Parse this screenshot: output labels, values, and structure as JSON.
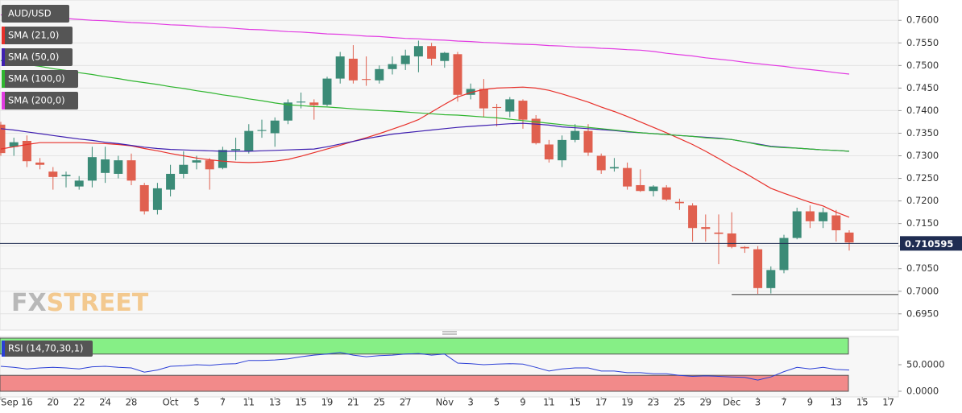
{
  "chart_data": {
    "type": "candlestick",
    "symbol": "AUD/USD",
    "categories": [
      "Sep",
      null,
      "16",
      null,
      "20",
      null,
      "22",
      null,
      "24",
      null,
      "28",
      null,
      null,
      "Oct",
      null,
      "5",
      null,
      "7",
      null,
      "11",
      null,
      "13",
      null,
      "15",
      null,
      "19",
      null,
      "21",
      null,
      "25",
      null,
      "27",
      null,
      null,
      "Nov",
      null,
      "3",
      null,
      "5",
      null,
      "9",
      null,
      "11",
      null,
      "15",
      null,
      "17",
      null,
      "19",
      null,
      "23",
      null,
      "25",
      null,
      "29",
      null,
      "Dec",
      null,
      "3",
      null,
      "7",
      null,
      "9",
      null,
      "13",
      null,
      "15",
      null,
      "17"
    ],
    "open": [
      0.7369,
      0.732,
      0.7333,
      0.7285,
      0.7265,
      0.7255,
      0.7232,
      0.7245,
      0.7262,
      0.726,
      0.729,
      0.7235,
      0.718,
      0.7225,
      0.726,
      0.7285,
      0.729,
      0.7273,
      0.7312,
      0.731,
      0.7355,
      0.735,
      0.7378,
      0.7418,
      0.7418,
      0.7413,
      0.7471,
      0.7515,
      0.747,
      0.7467,
      0.7492,
      0.7503,
      0.752,
      0.7543,
      0.751,
      0.7525,
      0.7435,
      0.7448,
      0.7408,
      0.7398,
      0.7422,
      0.7382,
      0.7325,
      0.729,
      0.7335,
      0.7355,
      0.73,
      0.7272,
      0.7273,
      0.7235,
      0.7222,
      0.723,
      0.7198,
      0.719,
      0.7142,
      0.713,
      0.7128,
      0.7098,
      0.7093,
      0.7007,
      0.7047,
      0.7118,
      0.7177,
      0.7155,
      0.7168,
      0.713,
      null,
      null,
      null
    ],
    "high": [
      0.7375,
      0.734,
      0.7345,
      0.7295,
      0.7275,
      0.7265,
      0.7255,
      0.732,
      0.732,
      0.73,
      0.7305,
      0.724,
      0.724,
      0.728,
      0.731,
      0.73,
      0.7295,
      0.732,
      0.734,
      0.737,
      0.738,
      0.7385,
      0.7425,
      0.744,
      0.7425,
      0.7475,
      0.753,
      0.7545,
      0.752,
      0.75,
      0.752,
      0.7535,
      0.7555,
      0.755,
      0.753,
      0.753,
      0.746,
      0.747,
      0.7415,
      0.743,
      0.7425,
      0.739,
      0.7335,
      0.7345,
      0.737,
      0.737,
      0.7305,
      0.7295,
      0.7285,
      0.727,
      0.7235,
      0.7235,
      0.7205,
      0.7195,
      0.717,
      0.717,
      0.7175,
      0.71,
      0.71,
      0.7055,
      0.7125,
      0.7185,
      0.719,
      0.7185,
      0.718,
      0.7135,
      null,
      null,
      null
    ],
    "low": [
      0.73,
      0.73,
      0.7275,
      0.727,
      0.7225,
      0.723,
      0.7225,
      0.723,
      0.724,
      0.725,
      0.7235,
      0.717,
      0.717,
      0.721,
      0.725,
      0.727,
      0.7225,
      0.727,
      0.729,
      0.7305,
      0.734,
      0.732,
      0.737,
      0.7405,
      0.738,
      0.741,
      0.746,
      0.746,
      0.7455,
      0.746,
      0.748,
      0.749,
      0.7485,
      0.75,
      0.7495,
      0.742,
      0.7425,
      0.7385,
      0.7365,
      0.7385,
      0.736,
      0.7325,
      0.7285,
      0.7275,
      0.733,
      0.73,
      0.726,
      0.7265,
      0.7225,
      0.722,
      0.721,
      0.72,
      0.718,
      0.711,
      0.711,
      0.706,
      0.7095,
      0.7085,
      0.6993,
      0.6995,
      0.704,
      0.7115,
      0.714,
      0.714,
      0.711,
      0.709,
      null,
      null,
      null
    ],
    "close": [
      0.7306,
      0.733,
      0.7288,
      0.728,
      0.7253,
      0.7258,
      0.7245,
      0.7297,
      0.7292,
      0.729,
      0.7245,
      0.7177,
      0.7228,
      0.726,
      0.728,
      0.729,
      0.727,
      0.7313,
      0.7315,
      0.7355,
      0.7357,
      0.7378,
      0.7418,
      0.742,
      0.7412,
      0.7471,
      0.752,
      0.7467,
      0.7468,
      0.7492,
      0.7503,
      0.7522,
      0.7543,
      0.7515,
      0.7528,
      0.7435,
      0.7448,
      0.7405,
      0.7406,
      0.7425,
      0.738,
      0.7328,
      0.7292,
      0.7335,
      0.7355,
      0.7307,
      0.7268,
      0.7275,
      0.7232,
      0.7222,
      0.7232,
      0.7203,
      0.7195,
      0.714,
      0.7138,
      0.7127,
      0.7098,
      0.7095,
      0.7007,
      0.7047,
      0.7118,
      0.7177,
      0.7155,
      0.7175,
      0.7135,
      0.7108,
      null,
      null,
      null
    ],
    "up_color": "#3b8b77",
    "down_color": "#e0604f",
    "series": [
      {
        "name": "SMA (21,0)",
        "color": "#e8302a",
        "values": [
          0.7315,
          0.732,
          0.7325,
          0.7329,
          0.7329,
          0.7329,
          0.7329,
          0.7328,
          0.7327,
          0.7325,
          0.7322,
          0.7316,
          0.7311,
          0.7305,
          0.73,
          0.7295,
          0.7291,
          0.7288,
          0.7286,
          0.7285,
          0.7286,
          0.7288,
          0.7292,
          0.7299,
          0.7307,
          0.7315,
          0.7323,
          0.7332,
          0.734,
          0.7349,
          0.7359,
          0.7369,
          0.738,
          0.7397,
          0.7414,
          0.743,
          0.744,
          0.7447,
          0.745,
          0.7451,
          0.7452,
          0.745,
          0.7445,
          0.7437,
          0.7428,
          0.7419,
          0.7408,
          0.7398,
          0.7387,
          0.7375,
          0.7363,
          0.7351,
          0.7338,
          0.7325,
          0.731,
          0.7294,
          0.7277,
          0.7262,
          0.7245,
          0.7228,
          0.7217,
          0.7207,
          0.7197,
          0.7189,
          0.7175,
          0.7164,
          null,
          null,
          null
        ]
      },
      {
        "name": "SMA (50,0)",
        "color": "#3f1fb0",
        "values": [
          0.736,
          0.7357,
          0.7353,
          0.7349,
          0.7345,
          0.7341,
          0.7337,
          0.7334,
          0.733,
          0.7327,
          0.7323,
          0.7319,
          0.7316,
          0.7314,
          0.7313,
          0.7312,
          0.7311,
          0.731,
          0.731,
          0.731,
          0.7311,
          0.7312,
          0.7313,
          0.7314,
          0.7315,
          0.732,
          0.7326,
          0.7332,
          0.7338,
          0.7343,
          0.7348,
          0.7351,
          0.7354,
          0.7357,
          0.736,
          0.7363,
          0.7365,
          0.7367,
          0.7369,
          0.7371,
          0.7372,
          0.737,
          0.7368,
          0.7364,
          0.7362,
          0.736,
          0.7358,
          0.7356,
          0.7353,
          0.7351,
          0.7349,
          0.7347,
          0.7345,
          0.7343,
          0.7341,
          0.7339,
          0.7336,
          0.7331,
          0.7326,
          0.7321,
          0.7319,
          0.7317,
          0.7315,
          0.7313,
          0.7312,
          0.731,
          null,
          null,
          null
        ]
      },
      {
        "name": "SMA (100,0)",
        "color": "#2fb52f",
        "values": [
          0.7511,
          0.7507,
          0.7502,
          0.7498,
          0.7493,
          0.7489,
          0.7484,
          0.748,
          0.7475,
          0.7471,
          0.7466,
          0.7462,
          0.7458,
          0.7453,
          0.7449,
          0.7444,
          0.744,
          0.7435,
          0.7431,
          0.7426,
          0.7422,
          0.7417,
          0.7413,
          0.7411,
          0.7409,
          0.7408,
          0.7406,
          0.7404,
          0.7402,
          0.74,
          0.7399,
          0.7397,
          0.7395,
          0.7393,
          0.7391,
          0.739,
          0.7388,
          0.7386,
          0.7384,
          0.7381,
          0.7378,
          0.7375,
          0.7372,
          0.7369,
          0.7366,
          0.7363,
          0.736,
          0.7357,
          0.7354,
          0.7351,
          0.7349,
          0.7347,
          0.7345,
          0.7343,
          0.734,
          0.7338,
          0.7336,
          0.7331,
          0.7325,
          0.732,
          0.7318,
          0.7317,
          0.7315,
          0.7313,
          0.7312,
          0.731,
          null,
          null,
          null
        ]
      },
      {
        "name": "SMA (200,0)",
        "color": "#e23be2",
        "values": [
          0.7612,
          0.761,
          0.7609,
          0.7607,
          0.7605,
          0.7604,
          0.7602,
          0.76,
          0.7599,
          0.7597,
          0.7595,
          0.7594,
          0.7592,
          0.759,
          0.7589,
          0.7587,
          0.7585,
          0.7584,
          0.7582,
          0.758,
          0.7579,
          0.7577,
          0.7575,
          0.7574,
          0.7572,
          0.757,
          0.7569,
          0.7567,
          0.7565,
          0.7564,
          0.7562,
          0.756,
          0.7559,
          0.7557,
          0.7556,
          0.7554,
          0.7553,
          0.7551,
          0.755,
          0.7548,
          0.7547,
          0.7546,
          0.7544,
          0.7543,
          0.7541,
          0.754,
          0.7538,
          0.7537,
          0.7535,
          0.7534,
          0.7531,
          0.7527,
          0.7524,
          0.7521,
          0.7517,
          0.7514,
          0.7511,
          0.7507,
          0.7504,
          0.7501,
          0.7498,
          0.7494,
          0.7491,
          0.7488,
          0.7484,
          0.7481,
          null,
          null,
          null
        ]
      }
    ],
    "ylim": [
      0.6914,
      0.7645
    ],
    "yticks": [
      {
        "value": 0.695,
        "label": "0.6950"
      },
      {
        "value": 0.7,
        "label": "0.7000"
      },
      {
        "value": 0.705,
        "label": "0.7050"
      },
      {
        "value": 0.71,
        "label": "0.7100"
      },
      {
        "value": 0.715,
        "label": "0.7150"
      },
      {
        "value": 0.72,
        "label": "0.7200"
      },
      {
        "value": 0.725,
        "label": "0.7250"
      },
      {
        "value": 0.73,
        "label": "0.7300"
      },
      {
        "value": 0.735,
        "label": "0.7350"
      },
      {
        "value": 0.74,
        "label": "0.7400"
      },
      {
        "value": 0.745,
        "label": "0.7450"
      },
      {
        "value": 0.75,
        "label": "0.7500"
      },
      {
        "value": 0.755,
        "label": "0.7550"
      },
      {
        "value": 0.76,
        "label": "0.7600"
      }
    ],
    "grid": true,
    "last_price": {
      "value": 0.710595,
      "label": "0.710595"
    },
    "support_line": 0.6993,
    "watermark": [
      "FX",
      "STREET"
    ],
    "rsi": {
      "name": "RSI (14,70,30,1)",
      "color": "#2b3fd6",
      "values": [
        47,
        45,
        42,
        44,
        45,
        44,
        42,
        46,
        47,
        45,
        44,
        36,
        40,
        47,
        48,
        50,
        49,
        51,
        52,
        58,
        58,
        59,
        61,
        65,
        68,
        70,
        73,
        68,
        65,
        67,
        68,
        70,
        71,
        68,
        70,
        53,
        52,
        50,
        51,
        52,
        51,
        45,
        38,
        42,
        44,
        44,
        38,
        38,
        35,
        35,
        33,
        33,
        30,
        28,
        29,
        28,
        27,
        26,
        21,
        27,
        37,
        45,
        42,
        45,
        41,
        40,
        null,
        null,
        null
      ],
      "ylim": [
        0,
        100
      ],
      "yticks": [
        {
          "value": 50,
          "label": "50.0000"
        },
        {
          "value": 0,
          "label": "0.0000"
        }
      ],
      "overbought": 70,
      "oversold": 30
    }
  }
}
